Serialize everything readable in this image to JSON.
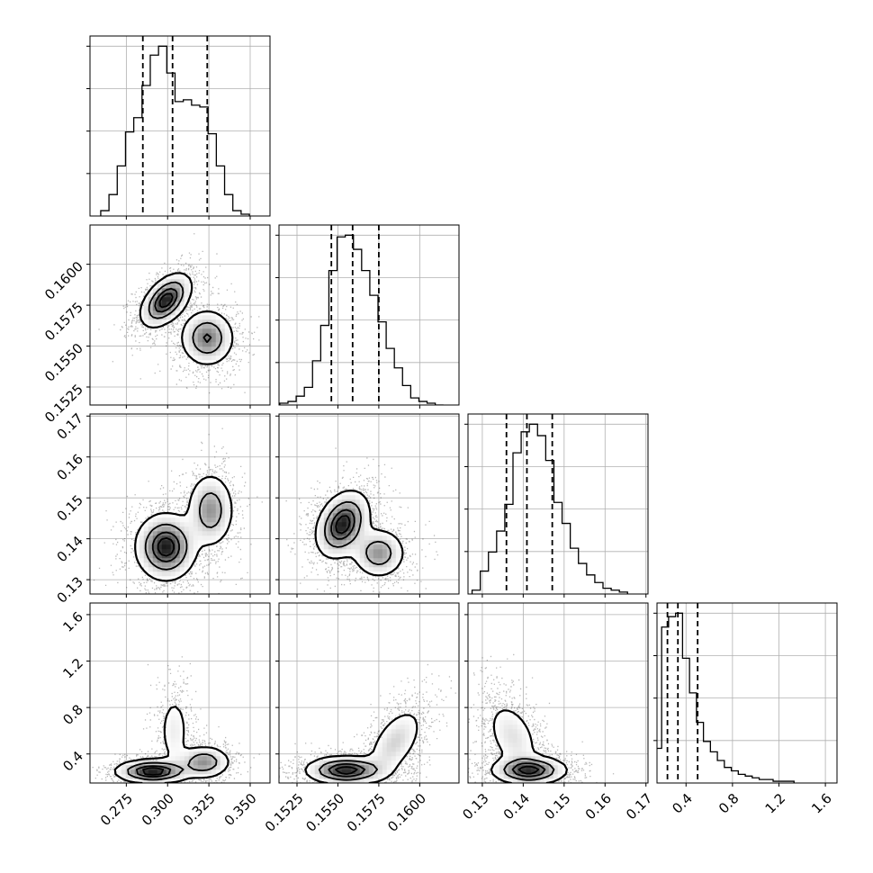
{
  "chart_data": {
    "type": "corner",
    "parameters": 4,
    "axes": [
      {
        "ticks": [
          0.275,
          0.3,
          0.325,
          0.35
        ],
        "tick_labels": [
          "0.275",
          "0.300",
          "0.325",
          "0.350"
        ],
        "range": [
          0.253,
          0.362
        ]
      },
      {
        "ticks": [
          0.1525,
          0.155,
          0.1575,
          0.16
        ],
        "tick_labels": [
          "0.1525",
          "0.1550",
          "0.1575",
          "0.1600"
        ],
        "range": [
          0.1514,
          0.1624
        ]
      },
      {
        "ticks": [
          0.13,
          0.14,
          0.15,
          0.16,
          0.17
        ],
        "tick_labels": [
          "0.13",
          "0.14",
          "0.15",
          "0.16",
          "0.17"
        ],
        "range": [
          0.1265,
          0.1705
        ]
      },
      {
        "ticks": [
          0.4,
          0.8,
          1.2,
          1.6
        ],
        "tick_labels": [
          "0.4",
          "0.8",
          "1.2",
          "1.6"
        ],
        "range": [
          0.15,
          1.7
        ]
      }
    ],
    "histograms": [
      {
        "parameter": 0,
        "bin_centers": [
          0.262,
          0.267,
          0.272,
          0.277,
          0.282,
          0.287,
          0.292,
          0.297,
          0.302,
          0.307,
          0.312,
          0.317,
          0.322,
          0.327,
          0.332,
          0.337,
          0.342,
          0.347
        ],
        "counts": [
          3,
          12,
          28,
          47,
          55,
          73,
          90,
          95,
          80,
          64,
          65,
          62,
          61,
          46,
          28,
          12,
          3,
          1
        ],
        "quantiles": [
          0.285,
          0.303,
          0.324
        ]
      },
      {
        "parameter": 1,
        "bin_centers": [
          0.1517,
          0.1522,
          0.1527,
          0.1532,
          0.1537,
          0.1542,
          0.1547,
          0.1552,
          0.1557,
          0.1562,
          0.1567,
          0.1572,
          0.1577,
          0.1582,
          0.1587,
          0.1592,
          0.1597,
          0.1602,
          0.1607,
          0.1612
        ],
        "counts": [
          1,
          2,
          5,
          10,
          25,
          45,
          76,
          95,
          96,
          88,
          76,
          62,
          47,
          32,
          21,
          11,
          4,
          2,
          1,
          0
        ],
        "quantiles": [
          0.1546,
          0.1559,
          0.1575
        ]
      },
      {
        "parameter": 2,
        "bin_centers": [
          0.1285,
          0.1305,
          0.1325,
          0.1345,
          0.1365,
          0.1385,
          0.1405,
          0.1425,
          0.1445,
          0.1465,
          0.1485,
          0.1505,
          0.1525,
          0.1545,
          0.1565,
          0.1585,
          0.1605,
          0.1625,
          0.1645
        ],
        "counts": [
          2,
          12,
          22,
          33,
          47,
          74,
          85,
          89,
          83,
          70,
          48,
          37,
          24,
          16,
          10,
          6,
          3,
          2,
          1
        ],
        "quantiles": [
          0.1359,
          0.1409,
          0.1471
        ]
      },
      {
        "parameter": 3,
        "bin_centers": [
          0.16,
          0.22,
          0.28,
          0.34,
          0.4,
          0.46,
          0.52,
          0.58,
          0.64,
          0.7,
          0.76,
          0.82,
          0.88,
          0.94,
          1.0,
          1.06,
          1.12,
          1.18,
          1.24,
          1.3
        ],
        "counts": [
          20,
          90,
          96,
          98,
          72,
          52,
          35,
          24,
          18,
          13,
          9,
          7,
          5,
          4,
          3,
          2,
          2,
          1,
          1,
          1
        ],
        "quantiles": [
          0.24,
          0.33,
          0.5
        ]
      }
    ],
    "densities": [
      {
        "x": 0,
        "y": 1,
        "modes": [
          {
            "cx": 0.299,
            "cy": 0.1578,
            "sx": 0.0075,
            "sy": 0.0008,
            "rho": 0.5,
            "w": 1.0
          },
          {
            "cx": 0.324,
            "cy": 0.1555,
            "sx": 0.008,
            "sy": 0.00085,
            "rho": 0.0,
            "w": 0.7
          }
        ]
      },
      {
        "x": 0,
        "y": 2,
        "modes": [
          {
            "cx": 0.299,
            "cy": 0.138,
            "sx": 0.009,
            "sy": 0.004,
            "rho": 0.0,
            "w": 1.0
          },
          {
            "cx": 0.326,
            "cy": 0.147,
            "sx": 0.007,
            "sy": 0.0045,
            "rho": 0.0,
            "w": 0.6
          }
        ]
      },
      {
        "x": 1,
        "y": 2,
        "modes": [
          {
            "cx": 0.1553,
            "cy": 0.1435,
            "sx": 0.0008,
            "sy": 0.004,
            "rho": 0.3,
            "w": 1.0
          },
          {
            "cx": 0.1575,
            "cy": 0.1365,
            "sx": 0.0008,
            "sy": 0.003,
            "rho": 0.0,
            "w": 0.6
          }
        ]
      },
      {
        "x": 0,
        "y": 3,
        "modes": [
          {
            "cx": 0.291,
            "cy": 0.25,
            "sx": 0.011,
            "sy": 0.05,
            "rho": 0.0,
            "w": 1.0
          },
          {
            "cx": 0.322,
            "cy": 0.33,
            "sx": 0.008,
            "sy": 0.07,
            "rho": 0.0,
            "w": 0.6
          },
          {
            "cx": 0.304,
            "cy": 0.6,
            "sx": 0.005,
            "sy": 0.18,
            "rho": 0.0,
            "w": 0.22
          }
        ]
      },
      {
        "x": 1,
        "y": 3,
        "modes": [
          {
            "cx": 0.1555,
            "cy": 0.26,
            "sx": 0.0012,
            "sy": 0.06,
            "rho": 0.0,
            "w": 1.0
          },
          {
            "cx": 0.1585,
            "cy": 0.5,
            "sx": 0.0009,
            "sy": 0.16,
            "rho": 0.55,
            "w": 0.35
          }
        ]
      },
      {
        "x": 2,
        "y": 3,
        "modes": [
          {
            "cx": 0.1415,
            "cy": 0.26,
            "sx": 0.0045,
            "sy": 0.06,
            "rho": 0.0,
            "w": 1.0
          },
          {
            "cx": 0.1375,
            "cy": 0.55,
            "sx": 0.0035,
            "sy": 0.17,
            "rho": -0.4,
            "w": 0.3
          }
        ]
      }
    ],
    "contour_levels": [
      0.118,
      0.393,
      0.675,
      0.865
    ],
    "quantile_line_style": "dashed",
    "scatter_color": "#000000",
    "grid": true,
    "title": "",
    "legend": ""
  }
}
